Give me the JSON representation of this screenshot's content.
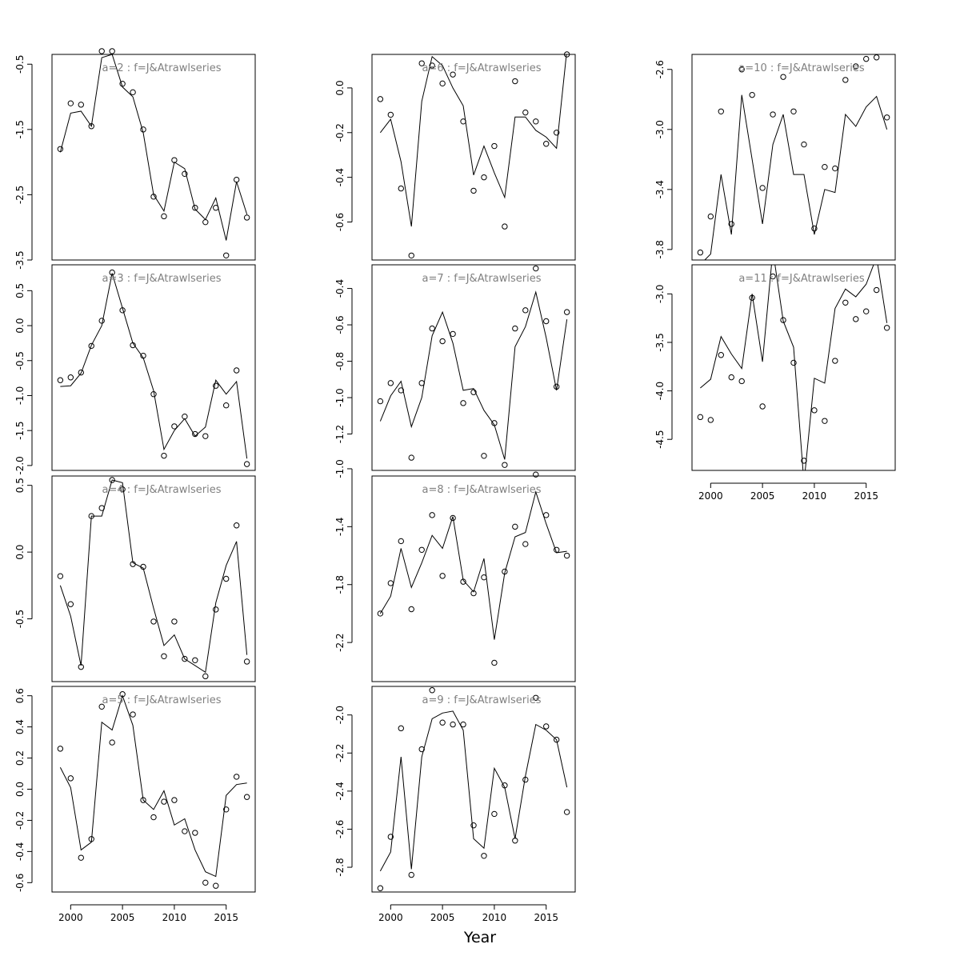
{
  "figure": {
    "xlabel": "Year"
  },
  "chart_data": [
    {
      "type": "line",
      "title": "a=2  :  f=J&Atrawlseries",
      "xlim": [
        1998.2,
        2017.8
      ],
      "ylim": [
        -3.5,
        -0.35
      ],
      "xticks": [],
      "yticks": [
        -0.5,
        -1.5,
        -2.5,
        -3.5
      ],
      "x": [
        1999,
        2000,
        2001,
        2002,
        2003,
        2004,
        2005,
        2006,
        2007,
        2008,
        2009,
        2010,
        2011,
        2012,
        2013,
        2014,
        2015,
        2016,
        2017
      ],
      "series": [
        {
          "values": [
            -1.85,
            -1.25,
            -1.22,
            -1.45,
            -0.4,
            -0.35,
            -0.85,
            -1.0,
            -1.55,
            -2.5,
            -2.75,
            -2.0,
            -2.1,
            -2.72,
            -2.88,
            -2.55,
            -3.2,
            -2.3,
            -2.8
          ]
        },
        {
          "style": "points",
          "values": [
            -1.8,
            -1.1,
            -1.12,
            -1.45,
            -0.3,
            -0.3,
            -0.8,
            -0.93,
            -1.5,
            -2.53,
            -2.83,
            -1.97,
            -2.18,
            -2.7,
            -2.92,
            -2.7,
            -3.43,
            -2.27,
            -2.85
          ]
        }
      ]
    },
    {
      "type": "line",
      "title": "a=6  :  f=J&Atrawlseries",
      "xlim": [
        1998.2,
        2017.8
      ],
      "ylim": [
        -0.77,
        0.15
      ],
      "xticks": [],
      "yticks": [
        0.0,
        -0.2,
        -0.4,
        -0.6
      ],
      "x": [
        1999,
        2000,
        2001,
        2002,
        2003,
        2004,
        2005,
        2006,
        2007,
        2008,
        2009,
        2010,
        2011,
        2012,
        2013,
        2014,
        2015,
        2016,
        2017
      ],
      "series": [
        {
          "values": [
            -0.2,
            -0.14,
            -0.33,
            -0.62,
            -0.06,
            0.14,
            0.1,
            0.0,
            -0.08,
            -0.39,
            -0.26,
            -0.38,
            -0.49,
            -0.13,
            -0.13,
            -0.19,
            -0.22,
            -0.27,
            0.17
          ]
        },
        {
          "style": "points",
          "values": [
            -0.05,
            -0.12,
            -0.45,
            -0.75,
            0.11,
            0.1,
            0.02,
            0.06,
            -0.15,
            -0.46,
            -0.4,
            -0.26,
            -0.62,
            0.03,
            -0.11,
            -0.15,
            -0.25,
            -0.2,
            0.15
          ]
        }
      ]
    },
    {
      "type": "line",
      "title": "a=10  :  f=J&Atrawlseries",
      "xlim": [
        1998.2,
        2017.8
      ],
      "ylim": [
        -3.87,
        -2.5
      ],
      "xticks": [],
      "yticks": [
        -2.6,
        -3.0,
        -3.4,
        -3.8
      ],
      "x": [
        1999,
        2000,
        2001,
        2002,
        2003,
        2004,
        2005,
        2006,
        2007,
        2008,
        2009,
        2010,
        2011,
        2012,
        2013,
        2014,
        2015,
        2016,
        2017
      ],
      "series": [
        {
          "values": [
            -3.9,
            -3.83,
            -3.3,
            -3.7,
            -2.77,
            -3.2,
            -3.63,
            -3.1,
            -2.9,
            -3.3,
            -3.3,
            -3.7,
            -3.4,
            -3.42,
            -2.9,
            -2.98,
            -2.85,
            -2.78,
            -3.0
          ]
        },
        {
          "style": "points",
          "values": [
            -3.82,
            -3.58,
            -2.88,
            -3.63,
            -2.6,
            -2.77,
            -3.39,
            -2.9,
            -2.65,
            -2.88,
            -3.1,
            -3.66,
            -3.25,
            -3.26,
            -2.67,
            -2.58,
            -2.53,
            -2.52,
            -2.92
          ]
        }
      ]
    },
    {
      "type": "line",
      "title": "a=3  :  f=J&Atrawlseries",
      "xlim": [
        1998.2,
        2017.8
      ],
      "ylim": [
        -2.07,
        0.87
      ],
      "xticks": [],
      "yticks": [
        0.5,
        0.0,
        -0.5,
        -1.0,
        -1.5,
        -2.0
      ],
      "x": [
        1999,
        2000,
        2001,
        2002,
        2003,
        2004,
        2005,
        2006,
        2007,
        2008,
        2009,
        2010,
        2011,
        2012,
        2013,
        2014,
        2015,
        2016,
        2017
      ],
      "series": [
        {
          "values": [
            -0.87,
            -0.86,
            -0.68,
            -0.28,
            0.0,
            0.75,
            0.25,
            -0.25,
            -0.46,
            -0.93,
            -1.77,
            -1.5,
            -1.33,
            -1.58,
            -1.45,
            -0.78,
            -0.98,
            -0.8,
            -1.9
          ]
        },
        {
          "style": "points",
          "values": [
            -0.78,
            -0.74,
            -0.67,
            -0.29,
            0.07,
            0.76,
            0.22,
            -0.28,
            -0.43,
            -0.98,
            -1.86,
            -1.44,
            -1.3,
            -1.55,
            -1.58,
            -0.86,
            -1.14,
            -0.64,
            -1.98
          ]
        }
      ]
    },
    {
      "type": "line",
      "title": "a=7  :  f=J&Atrawlseries",
      "xlim": [
        1998.2,
        2017.8
      ],
      "ylim": [
        -1.4,
        -0.27
      ],
      "xticks": [],
      "yticks": [
        -0.4,
        -0.6,
        -0.8,
        -1.0,
        -1.2
      ],
      "x": [
        1999,
        2000,
        2001,
        2002,
        2003,
        2004,
        2005,
        2006,
        2007,
        2008,
        2009,
        2010,
        2011,
        2012,
        2013,
        2014,
        2015,
        2016,
        2017
      ],
      "series": [
        {
          "values": [
            -1.13,
            -0.99,
            -0.91,
            -1.16,
            -1.0,
            -0.66,
            -0.53,
            -0.7,
            -0.96,
            -0.95,
            -1.07,
            -1.15,
            -1.34,
            -0.72,
            -0.61,
            -0.42,
            -0.67,
            -0.96,
            -0.57
          ]
        },
        {
          "style": "points",
          "values": [
            -1.02,
            -0.92,
            -0.96,
            -1.33,
            -0.92,
            -0.62,
            -0.69,
            -0.65,
            -1.03,
            -0.97,
            -1.32,
            -1.14,
            -1.37,
            -0.62,
            -0.52,
            -0.29,
            -0.58,
            -0.94,
            -0.53
          ]
        }
      ]
    },
    {
      "type": "line",
      "title": "a=11  :  f=J&Atrawlseries",
      "xlim": [
        1998.2,
        2017.8
      ],
      "ylim": [
        -4.82,
        -2.7
      ],
      "xticks": [
        2000,
        2005,
        2010,
        2015
      ],
      "yticks": [
        -3.0,
        -3.5,
        -4.0,
        -4.5
      ],
      "x": [
        1999,
        2000,
        2001,
        2002,
        2003,
        2004,
        2005,
        2006,
        2007,
        2008,
        2009,
        2010,
        2011,
        2012,
        2013,
        2014,
        2015,
        2016,
        2017
      ],
      "series": [
        {
          "values": [
            -3.97,
            -3.88,
            -3.44,
            -3.62,
            -3.77,
            -3.0,
            -3.7,
            -2.55,
            -3.28,
            -3.55,
            -4.95,
            -3.87,
            -3.92,
            -3.15,
            -2.95,
            -3.03,
            -2.9,
            -2.62,
            -3.3
          ]
        },
        {
          "style": "points",
          "values": [
            -4.27,
            -4.3,
            -3.63,
            -3.86,
            -3.9,
            -3.04,
            -4.16,
            -2.82,
            -3.27,
            -3.71,
            -4.72,
            -4.2,
            -4.31,
            -3.69,
            -3.09,
            -3.26,
            -3.18,
            -2.96,
            -3.35
          ]
        }
      ]
    },
    {
      "type": "line",
      "title": "a=4  :  f=J&Atrawlseries",
      "xlim": [
        1998.2,
        2017.8
      ],
      "ylim": [
        -0.97,
        0.57
      ],
      "xticks": [],
      "yticks": [
        0.5,
        0.0,
        -0.5
      ],
      "x": [
        1999,
        2000,
        2001,
        2002,
        2003,
        2004,
        2005,
        2006,
        2007,
        2008,
        2009,
        2010,
        2011,
        2012,
        2013,
        2014,
        2015,
        2016,
        2017
      ],
      "series": [
        {
          "values": [
            -0.25,
            -0.48,
            -0.85,
            0.27,
            0.27,
            0.54,
            0.52,
            -0.08,
            -0.12,
            -0.42,
            -0.7,
            -0.62,
            -0.8,
            -0.85,
            -0.9,
            -0.38,
            -0.1,
            0.08,
            -0.77
          ]
        },
        {
          "style": "points",
          "values": [
            -0.18,
            -0.39,
            -0.86,
            0.27,
            0.33,
            0.54,
            0.47,
            -0.09,
            -0.11,
            -0.52,
            -0.78,
            -0.52,
            -0.8,
            -0.81,
            -0.93,
            -0.43,
            -0.2,
            0.2,
            -0.82
          ]
        }
      ]
    },
    {
      "type": "line",
      "title": "a=8  :  f=J&Atrawlseries",
      "xlim": [
        1998.2,
        2017.8
      ],
      "ylim": [
        -2.47,
        -1.05
      ],
      "xticks": [],
      "yticks": [
        -1.0,
        -1.4,
        -1.8,
        -2.2
      ],
      "x": [
        1999,
        2000,
        2001,
        2002,
        2003,
        2004,
        2005,
        2006,
        2007,
        2008,
        2009,
        2010,
        2011,
        2012,
        2013,
        2014,
        2015,
        2016,
        2017
      ],
      "series": [
        {
          "values": [
            -2.0,
            -1.88,
            -1.55,
            -1.82,
            -1.65,
            -1.46,
            -1.55,
            -1.33,
            -1.77,
            -1.85,
            -1.62,
            -2.18,
            -1.72,
            -1.47,
            -1.44,
            -1.16,
            -1.38,
            -1.58,
            -1.57
          ]
        },
        {
          "style": "points",
          "values": [
            -2.0,
            -1.79,
            -1.5,
            -1.97,
            -1.56,
            -1.32,
            -1.74,
            -1.34,
            -1.78,
            -1.86,
            -1.75,
            -2.34,
            -1.71,
            -1.4,
            -1.52,
            -1.04,
            -1.32,
            -1.56,
            -1.6
          ]
        }
      ]
    },
    {
      "type": "line",
      "title": "a=5  :  f=J&Atrawlseries",
      "xlim": [
        1998.2,
        2017.8
      ],
      "ylim": [
        -0.66,
        0.66
      ],
      "xticks": [
        2000,
        2005,
        2010,
        2015
      ],
      "yticks": [
        0.6,
        0.4,
        0.2,
        0.0,
        -0.2,
        -0.4,
        -0.6
      ],
      "x": [
        1999,
        2000,
        2001,
        2002,
        2003,
        2004,
        2005,
        2006,
        2007,
        2008,
        2009,
        2010,
        2011,
        2012,
        2013,
        2014,
        2015,
        2016,
        2017
      ],
      "series": [
        {
          "values": [
            0.14,
            0.01,
            -0.39,
            -0.34,
            0.43,
            0.38,
            0.6,
            0.41,
            -0.07,
            -0.13,
            -0.01,
            -0.23,
            -0.19,
            -0.39,
            -0.53,
            -0.56,
            -0.04,
            0.03,
            0.04
          ]
        },
        {
          "style": "points",
          "values": [
            0.26,
            0.07,
            -0.44,
            -0.32,
            0.53,
            0.3,
            0.61,
            0.48,
            -0.07,
            -0.18,
            -0.08,
            -0.07,
            -0.27,
            -0.28,
            -0.6,
            -0.62,
            -0.13,
            0.08,
            -0.05
          ]
        }
      ]
    },
    {
      "type": "line",
      "title": "a=9  :  f=J&Atrawlseries",
      "xlim": [
        1998.2,
        2017.8
      ],
      "ylim": [
        -2.93,
        -1.85
      ],
      "xticks": [
        2000,
        2005,
        2010,
        2015
      ],
      "yticks": [
        -2.0,
        -2.2,
        -2.4,
        -2.6,
        -2.8
      ],
      "x": [
        1999,
        2000,
        2001,
        2002,
        2003,
        2004,
        2005,
        2006,
        2007,
        2008,
        2009,
        2010,
        2011,
        2012,
        2013,
        2014,
        2015,
        2016,
        2017
      ],
      "series": [
        {
          "values": [
            -2.82,
            -2.72,
            -2.22,
            -2.81,
            -2.22,
            -2.02,
            -1.99,
            -1.98,
            -2.08,
            -2.65,
            -2.7,
            -2.28,
            -2.38,
            -2.65,
            -2.32,
            -2.05,
            -2.08,
            -2.13,
            -2.38
          ]
        },
        {
          "style": "points",
          "values": [
            -2.91,
            -2.64,
            -2.07,
            -2.84,
            -2.18,
            -1.87,
            -2.04,
            -2.05,
            -2.05,
            -2.58,
            -2.74,
            -2.52,
            -2.37,
            -2.66,
            -2.34,
            -1.91,
            -2.06,
            -2.13,
            -2.51
          ]
        }
      ]
    }
  ]
}
